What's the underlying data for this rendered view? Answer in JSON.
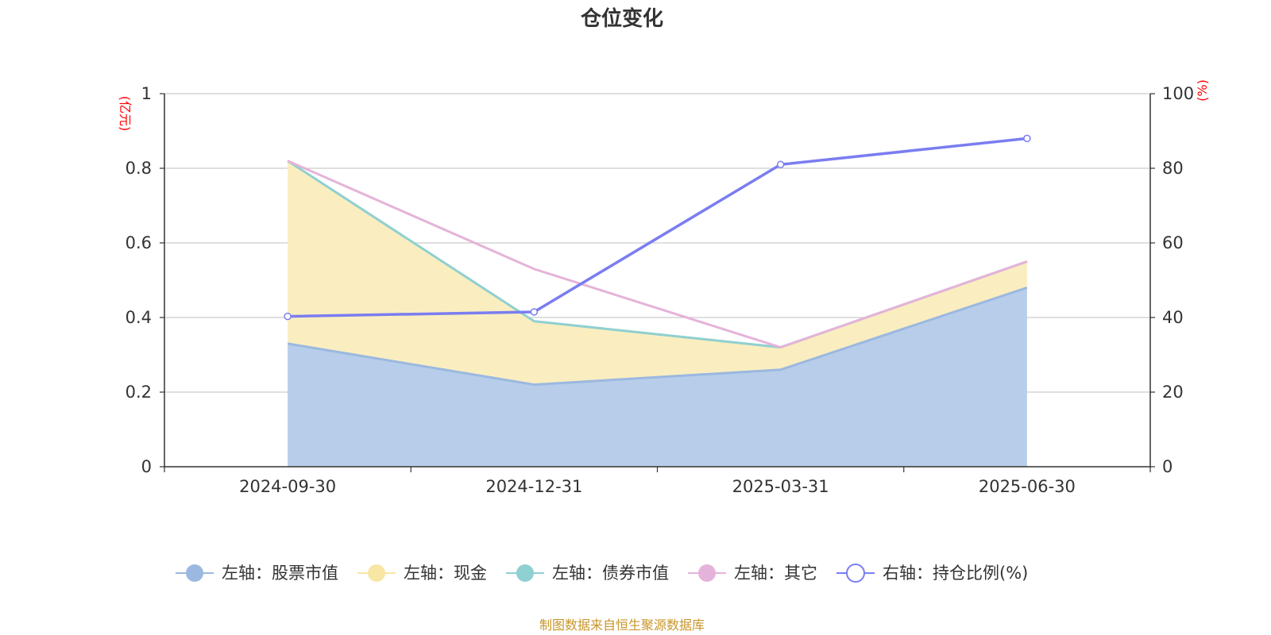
{
  "chart_data": {
    "type": "area",
    "title": "仓位变化",
    "categories": [
      "2024-09-30",
      "2024-12-31",
      "2025-03-31",
      "2025-06-30"
    ],
    "left_axis": {
      "unit": "(亿元)",
      "ylim": [
        0,
        1
      ],
      "ticks": [
        "0",
        "0.2",
        "0.4",
        "0.6",
        "0.8",
        "1"
      ],
      "tick_values": [
        0,
        0.2,
        0.4,
        0.6,
        0.8,
        1
      ]
    },
    "right_axis": {
      "unit": "(%)",
      "ylim": [
        0,
        100
      ],
      "ticks": [
        "0",
        "20",
        "40",
        "60",
        "80",
        "100"
      ],
      "tick_values": [
        0,
        20,
        40,
        60,
        80,
        100
      ]
    },
    "series": [
      {
        "name": "左轴：股票市值",
        "axis": "left",
        "kind": "stacked-area",
        "color": "#9bb8e0",
        "fill": "#b8cdea",
        "values": [
          0.33,
          0.22,
          0.26,
          0.48
        ]
      },
      {
        "name": "左轴：现金",
        "axis": "left",
        "kind": "stacked-area",
        "color": "#f7e6a4",
        "fill": "#faeec0",
        "values": [
          0.49,
          0.17,
          0.06,
          0.07
        ]
      },
      {
        "name": "左轴：债券市值",
        "axis": "left",
        "kind": "stacked-area",
        "color": "#8fd0d2",
        "fill": "#a8dadc",
        "values": [
          0,
          0,
          0,
          0
        ]
      },
      {
        "name": "左轴：其它",
        "axis": "left",
        "kind": "stacked-line",
        "color": "#e5b3d9",
        "values": [
          0.0,
          0.14,
          0.0,
          0.0
        ]
      },
      {
        "name": "右轴：持仓比例(%)",
        "axis": "right",
        "kind": "line",
        "color": "#7a7df0",
        "values": [
          40.3,
          41.5,
          81,
          88
        ]
      }
    ],
    "grid": true,
    "legend_position": "bottom",
    "source": "制图数据来自恒生聚源数据库"
  }
}
